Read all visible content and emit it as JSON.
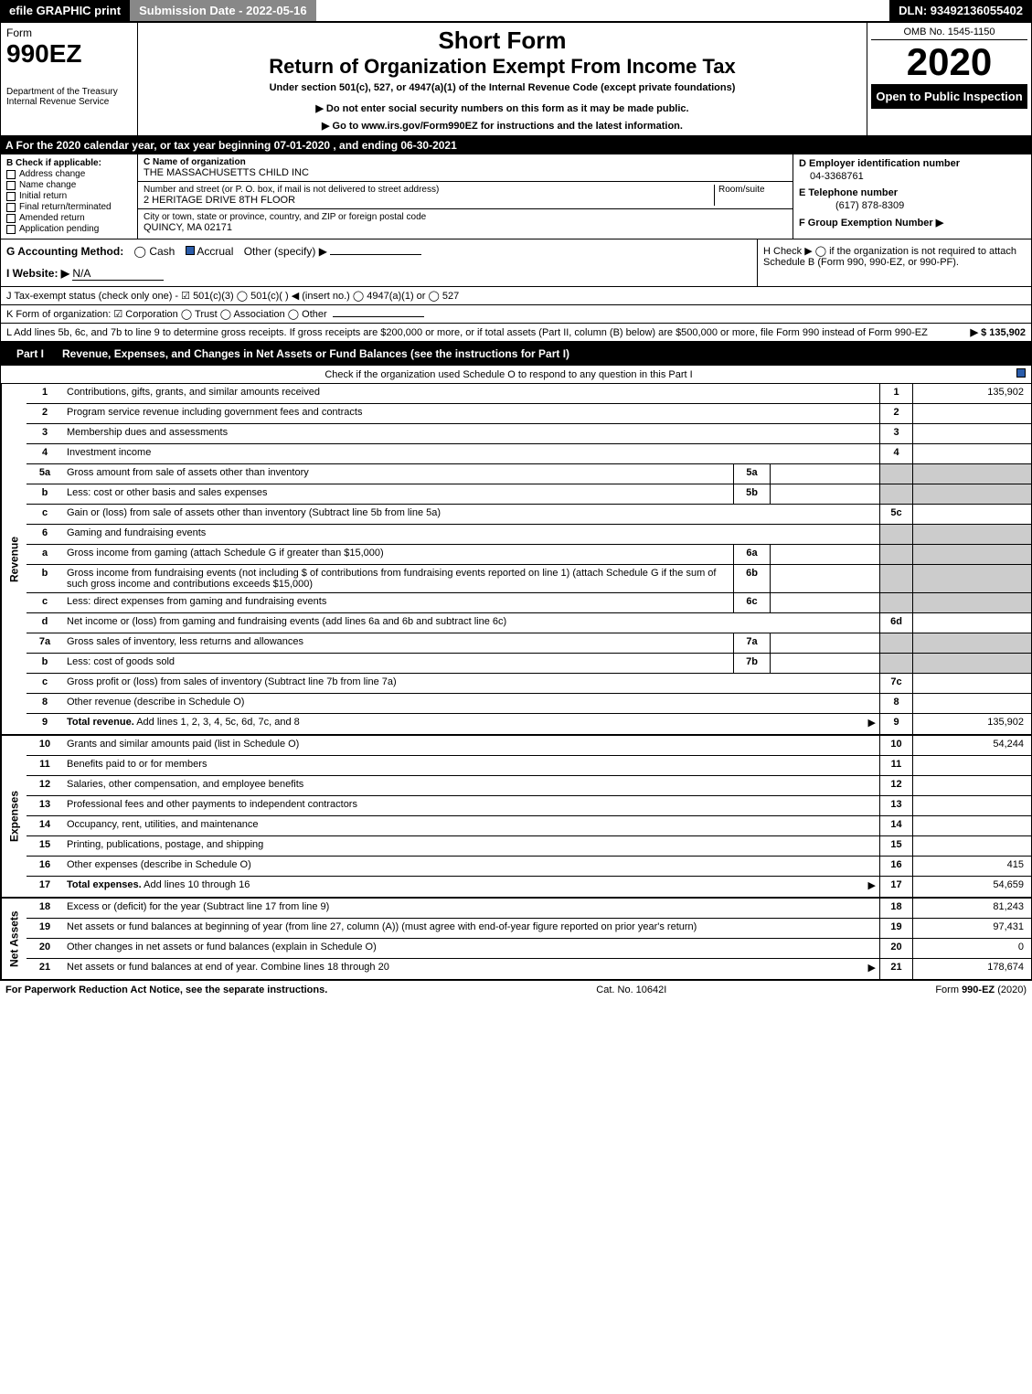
{
  "topbar": {
    "efile": "efile GRAPHIC print",
    "submission": "Submission Date - 2022-05-16",
    "dln": "DLN: 93492136055402"
  },
  "header": {
    "form_label": "Form",
    "form_no": "990EZ",
    "dept": "Department of the Treasury",
    "irs": "Internal Revenue Service",
    "short_form": "Short Form",
    "title": "Return of Organization Exempt From Income Tax",
    "subtitle": "Under section 501(c), 527, or 4947(a)(1) of the Internal Revenue Code (except private foundations)",
    "warn1": "▶ Do not enter social security numbers on this form as it may be made public.",
    "warn2": "▶ Go to www.irs.gov/Form990EZ for instructions and the latest information.",
    "omb": "OMB No. 1545-1150",
    "year": "2020",
    "open": "Open to Public Inspection"
  },
  "sectionA": "A For the 2020 calendar year, or tax year beginning 07-01-2020 , and ending 06-30-2021",
  "colB": {
    "label": "B Check if applicable:",
    "items": [
      "Address change",
      "Name change",
      "Initial return",
      "Final return/terminated",
      "Amended return",
      "Application pending"
    ]
  },
  "colC": {
    "name_label": "C Name of organization",
    "name": "THE MASSACHUSETTS CHILD INC",
    "street_label": "Number and street (or P. O. box, if mail is not delivered to street address)",
    "room_label": "Room/suite",
    "street": "2 HERITAGE DRIVE 8TH FLOOR",
    "city_label": "City or town, state or province, country, and ZIP or foreign postal code",
    "city": "QUINCY, MA  02171"
  },
  "colD": {
    "ein_label": "D Employer identification number",
    "ein": "04-3368761",
    "tel_label": "E Telephone number",
    "tel": "(617) 878-8309",
    "grp_label": "F Group Exemption Number  ▶",
    "grp": ""
  },
  "lineG": {
    "label": "G Accounting Method:",
    "cash": "Cash",
    "accrual": "Accrual",
    "other": "Other (specify) ▶"
  },
  "lineH": "H  Check ▶  ◯  if the organization is not required to attach Schedule B (Form 990, 990-EZ, or 990-PF).",
  "lineI": {
    "label": "I Website: ▶",
    "val": "N/A"
  },
  "lineJ": "J Tax-exempt status (check only one) - ☑ 501(c)(3) ◯ 501(c)(  ) ◀ (insert no.) ◯ 4947(a)(1) or ◯ 527",
  "lineK": "K Form of organization:  ☑ Corporation  ◯ Trust  ◯ Association  ◯ Other",
  "lineL": {
    "text": "L Add lines 5b, 6c, and 7b to line 9 to determine gross receipts. If gross receipts are $200,000 or more, or if total assets (Part II, column (B) below) are $500,000 or more, file Form 990 instead of Form 990-EZ",
    "amount": "▶ $ 135,902"
  },
  "part1": {
    "label": "Part I",
    "title": "Revenue, Expenses, and Changes in Net Assets or Fund Balances (see the instructions for Part I)",
    "check_note": "Check if the organization used Schedule O to respond to any question in this Part I"
  },
  "sideLabels": {
    "revenue": "Revenue",
    "expenses": "Expenses",
    "netassets": "Net Assets"
  },
  "revenue_rows": [
    {
      "no": "1",
      "desc": "Contributions, gifts, grants, and similar amounts received",
      "num": "1",
      "amt": "135,902"
    },
    {
      "no": "2",
      "desc": "Program service revenue including government fees and contracts",
      "num": "2",
      "amt": ""
    },
    {
      "no": "3",
      "desc": "Membership dues and assessments",
      "num": "3",
      "amt": ""
    },
    {
      "no": "4",
      "desc": "Investment income",
      "num": "4",
      "amt": ""
    },
    {
      "no": "5a",
      "desc": "Gross amount from sale of assets other than inventory",
      "sub": "5a",
      "subval": "",
      "shaded": true
    },
    {
      "no": "b",
      "desc": "Less: cost or other basis and sales expenses",
      "sub": "5b",
      "subval": "",
      "shaded": true
    },
    {
      "no": "c",
      "desc": "Gain or (loss) from sale of assets other than inventory (Subtract line 5b from line 5a)",
      "num": "5c",
      "amt": ""
    },
    {
      "no": "6",
      "desc": "Gaming and fundraising events",
      "shaded": true
    },
    {
      "no": "a",
      "desc": "Gross income from gaming (attach Schedule G if greater than $15,000)",
      "sub": "6a",
      "subval": "",
      "shaded": true
    },
    {
      "no": "b",
      "desc": "Gross income from fundraising events (not including $                   of contributions from fundraising events reported on line 1) (attach Schedule G if the sum of such gross income and contributions exceeds $15,000)",
      "sub": "6b",
      "subval": "",
      "shaded": true
    },
    {
      "no": "c",
      "desc": "Less: direct expenses from gaming and fundraising events",
      "sub": "6c",
      "subval": "",
      "shaded": true
    },
    {
      "no": "d",
      "desc": "Net income or (loss) from gaming and fundraising events (add lines 6a and 6b and subtract line 6c)",
      "num": "6d",
      "amt": ""
    },
    {
      "no": "7a",
      "desc": "Gross sales of inventory, less returns and allowances",
      "sub": "7a",
      "subval": "",
      "shaded": true
    },
    {
      "no": "b",
      "desc": "Less: cost of goods sold",
      "sub": "7b",
      "subval": "",
      "shaded": true
    },
    {
      "no": "c",
      "desc": "Gross profit or (loss) from sales of inventory (Subtract line 7b from line 7a)",
      "num": "7c",
      "amt": ""
    },
    {
      "no": "8",
      "desc": "Other revenue (describe in Schedule O)",
      "num": "8",
      "amt": ""
    },
    {
      "no": "9",
      "desc": "Total revenue. Add lines 1, 2, 3, 4, 5c, 6d, 7c, and 8",
      "num": "9",
      "amt": "135,902",
      "arrow": true,
      "bold": true
    }
  ],
  "expense_rows": [
    {
      "no": "10",
      "desc": "Grants and similar amounts paid (list in Schedule O)",
      "num": "10",
      "amt": "54,244"
    },
    {
      "no": "11",
      "desc": "Benefits paid to or for members",
      "num": "11",
      "amt": ""
    },
    {
      "no": "12",
      "desc": "Salaries, other compensation, and employee benefits",
      "num": "12",
      "amt": ""
    },
    {
      "no": "13",
      "desc": "Professional fees and other payments to independent contractors",
      "num": "13",
      "amt": ""
    },
    {
      "no": "14",
      "desc": "Occupancy, rent, utilities, and maintenance",
      "num": "14",
      "amt": ""
    },
    {
      "no": "15",
      "desc": "Printing, publications, postage, and shipping",
      "num": "15",
      "amt": ""
    },
    {
      "no": "16",
      "desc": "Other expenses (describe in Schedule O)",
      "num": "16",
      "amt": "415"
    },
    {
      "no": "17",
      "desc": "Total expenses. Add lines 10 through 16",
      "num": "17",
      "amt": "54,659",
      "arrow": true,
      "bold": true
    }
  ],
  "netasset_rows": [
    {
      "no": "18",
      "desc": "Excess or (deficit) for the year (Subtract line 17 from line 9)",
      "num": "18",
      "amt": "81,243"
    },
    {
      "no": "19",
      "desc": "Net assets or fund balances at beginning of year (from line 27, column (A)) (must agree with end-of-year figure reported on prior year's return)",
      "num": "19",
      "amt": "97,431"
    },
    {
      "no": "20",
      "desc": "Other changes in net assets or fund balances (explain in Schedule O)",
      "num": "20",
      "amt": "0"
    },
    {
      "no": "21",
      "desc": "Net assets or fund balances at end of year. Combine lines 18 through 20",
      "num": "21",
      "amt": "178,674",
      "arrow": true
    }
  ],
  "footer": {
    "left": "For Paperwork Reduction Act Notice, see the separate instructions.",
    "mid": "Cat. No. 10642I",
    "right": "Form 990-EZ (2020)"
  }
}
